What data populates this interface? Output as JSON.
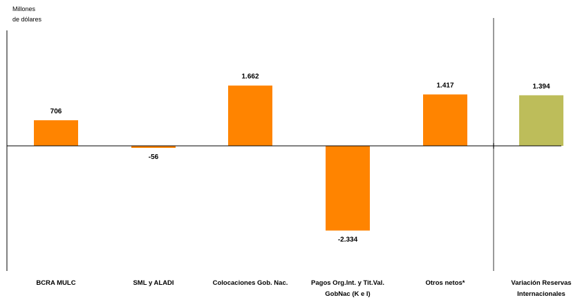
{
  "chart_data": {
    "type": "bar",
    "ylabel": "Millones de dólares",
    "ylabel_lines": [
      "Millones",
      "de dólares"
    ],
    "categories": [
      [
        "BCRA MULC"
      ],
      [
        "SML y ALADI"
      ],
      [
        "Colocaciones Gob. Nac."
      ],
      [
        "Pagos Org.Int. y Tit.Val.",
        "GobNac (K e I)"
      ],
      [
        "Otros netos*"
      ],
      [
        "Variación Reservas",
        "Internacionales"
      ]
    ],
    "values": [
      706,
      -56,
      1662,
      -2334,
      1417,
      1394
    ],
    "value_labels": [
      "706",
      "-56",
      "1.662",
      "-2.334",
      "1.417",
      "1.394"
    ],
    "bar_colors": [
      "#FF8400",
      "#FF8400",
      "#FF8400",
      "#FF8400",
      "#FF8400",
      "#BDBD5A"
    ],
    "ylim": [
      -3400,
      3800
    ],
    "grid": false,
    "legend": "none"
  }
}
